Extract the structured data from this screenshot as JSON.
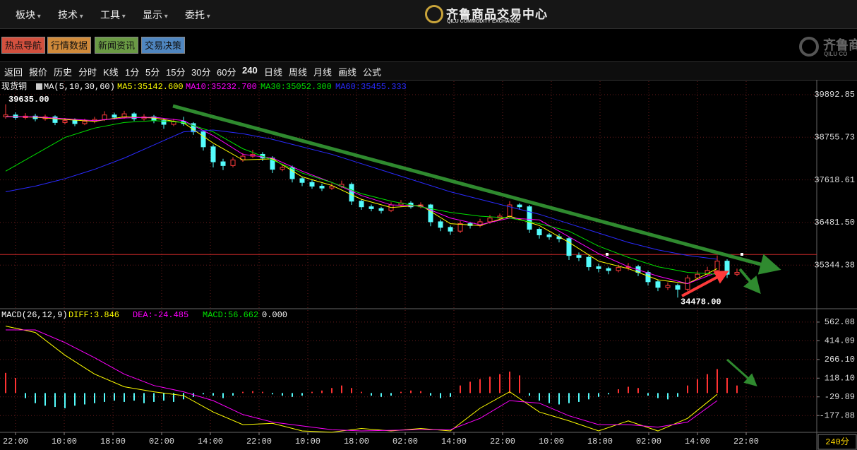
{
  "menu": [
    "板块",
    "技术",
    "工具",
    "显示",
    "委托"
  ],
  "logo": {
    "name": "齐鲁商品交易中心",
    "subtitle": "QILU COMMODITY EXCHANGE"
  },
  "corner_logo": {
    "name": "齐鲁商",
    "subtitle": "QILU CO"
  },
  "nav_buttons": [
    {
      "label": "热点导航",
      "color": "#d2503e"
    },
    {
      "label": "行情数据",
      "color": "#d08a3a"
    },
    {
      "label": "新闻资讯",
      "color": "#6a9a44"
    },
    {
      "label": "交易决策",
      "color": "#4f86c0"
    }
  ],
  "toolbar": [
    "返回",
    "报价",
    "历史",
    "分时",
    "K线",
    "1分",
    "5分",
    "15分",
    "30分",
    "60分",
    "240",
    "日线",
    "周线",
    "月线",
    "画线",
    "公式"
  ],
  "period_label": "240分",
  "chart_data": [
    {
      "type": "candlestick",
      "title": "现货铜",
      "indicator": "MA(5,10,30,60)",
      "up_color": "#ff3c3c",
      "down_color": "#54fcfc",
      "grid": true,
      "open": [
        39300,
        39350,
        39280,
        39320,
        39250,
        39300,
        39150,
        39200,
        39120,
        39180,
        39230,
        39350,
        39290,
        39380,
        39250,
        39300,
        39200,
        39100,
        39180,
        39120,
        38900,
        38500,
        38100,
        38000,
        38150,
        38250,
        38300,
        38200,
        37900,
        37950,
        37650,
        37550,
        37450,
        37400,
        37450,
        37500,
        37050,
        36900,
        36850,
        36800,
        36950,
        37000,
        36900,
        36950,
        36500,
        36350,
        36250,
        36450,
        36400,
        36500,
        36600,
        36650,
        36950,
        36900,
        36300,
        36150,
        36100,
        36050,
        35600,
        35550,
        35300,
        35250,
        35200,
        35280,
        35300,
        35150,
        34900,
        34750,
        34800,
        34700,
        35000,
        35100,
        35200,
        35450,
        35100
      ],
      "close": [
        39350,
        39280,
        39320,
        39250,
        39300,
        39150,
        39200,
        39120,
        39180,
        39230,
        39350,
        39290,
        39380,
        39250,
        39300,
        39200,
        39100,
        39180,
        39120,
        38900,
        38500,
        38100,
        38000,
        38150,
        38250,
        38300,
        38200,
        37900,
        37950,
        37650,
        37550,
        37450,
        37400,
        37450,
        37500,
        37050,
        36900,
        36850,
        36800,
        36950,
        37000,
        36900,
        36950,
        36500,
        36350,
        36250,
        36450,
        36400,
        36500,
        36600,
        36650,
        36950,
        36900,
        36300,
        36150,
        36100,
        36050,
        35600,
        35550,
        35300,
        35250,
        35200,
        35280,
        35300,
        35150,
        34900,
        34750,
        34800,
        34700,
        35000,
        35100,
        35200,
        35450,
        35100,
        35150
      ],
      "high": [
        39635,
        39420,
        39400,
        39380,
        39360,
        39340,
        39270,
        39260,
        39250,
        39300,
        39450,
        39410,
        39460,
        39420,
        39370,
        39350,
        39260,
        39250,
        39300,
        39160,
        38950,
        38560,
        38180,
        38220,
        38330,
        38420,
        38360,
        38250,
        38050,
        38000,
        37700,
        37620,
        37520,
        37530,
        37600,
        37550,
        37100,
        36960,
        36900,
        37020,
        37080,
        37050,
        37020,
        36980,
        36560,
        36400,
        36520,
        36500,
        36580,
        36680,
        36720,
        37050,
        37000,
        36950,
        36350,
        36200,
        36180,
        36100,
        35680,
        35600,
        35380,
        35300,
        35350,
        35400,
        35350,
        35200,
        34950,
        34880,
        34850,
        35080,
        35200,
        35300,
        35600,
        35500,
        35250
      ],
      "low": [
        39250,
        39220,
        39230,
        39180,
        39200,
        39080,
        39100,
        39050,
        39080,
        39130,
        39190,
        39230,
        39250,
        39190,
        39200,
        39130,
        38980,
        39050,
        39060,
        38820,
        38400,
        37950,
        37880,
        37950,
        38100,
        38200,
        38120,
        37800,
        37850,
        37550,
        37450,
        37380,
        37320,
        37350,
        37400,
        36950,
        36820,
        36780,
        36720,
        36760,
        36900,
        36850,
        36860,
        36380,
        36250,
        36150,
        36200,
        36320,
        36350,
        36450,
        36550,
        36600,
        36820,
        36200,
        36050,
        36020,
        35950,
        35480,
        35450,
        35200,
        35150,
        35100,
        35150,
        35200,
        35050,
        34800,
        34650,
        34680,
        34478,
        34650,
        34950,
        35050,
        35150,
        35000,
        35050
      ],
      "series": [
        {
          "name": "MA5:35142.600",
          "color": "#ffff00",
          "values": [
            39310,
            39290,
            39230,
            39180,
            39300,
            39270,
            39140,
            38600,
            38150,
            38180,
            37700,
            37470,
            37100,
            36880,
            36940,
            36450,
            36400,
            36650,
            36400,
            35950,
            35450,
            35250,
            34950,
            34850,
            35250
          ]
        },
        {
          "name": "MA10:35232.700",
          "color": "#ff00ff",
          "values": [
            39300,
            39300,
            39250,
            39200,
            39270,
            39290,
            39200,
            38800,
            38300,
            38200,
            37850,
            37550,
            37200,
            36950,
            36920,
            36600,
            36420,
            36600,
            36550,
            36100,
            35650,
            35300,
            35050,
            34850,
            35150
          ]
        },
        {
          "name": "MA30:35052.300",
          "color": "#00e000",
          "values": [
            37850,
            38300,
            38750,
            39000,
            39150,
            39200,
            39150,
            38900,
            38450,
            38150,
            37800,
            37550,
            37250,
            37050,
            36900,
            36750,
            36650,
            36600,
            36450,
            36250,
            35850,
            35550,
            35300,
            35150,
            35100
          ]
        },
        {
          "name": "MA60:35455.333",
          "color": "#2a2aff",
          "values": [
            37300,
            37450,
            37650,
            37900,
            38200,
            38550,
            38900,
            38950,
            38850,
            38700,
            38500,
            38300,
            38050,
            37800,
            37550,
            37300,
            37100,
            36900,
            36700,
            36450,
            36200,
            35950,
            35750,
            35600,
            35500
          ]
        }
      ],
      "ylim": [
        34180,
        40250
      ],
      "yticks": [
        39892.85,
        38755.73,
        37618.61,
        {
          "value": 36481.5,
          "label": "36481.50"
        },
        35344.38
      ],
      "annotations": [
        {
          "value": 39635,
          "label": "39635.00"
        },
        {
          "value": 34478,
          "label": "34478.00"
        }
      ],
      "price_line": 35626,
      "x_labels": [
        "22:00",
        "10:00",
        "18:00",
        "02:00",
        "14:00",
        "22:00",
        "10:00",
        "18:00",
        "02:00",
        "14:00",
        "22:00",
        "10:00",
        "18:00",
        "02:00",
        "14:00",
        "22:00"
      ]
    },
    {
      "type": "macd",
      "title": "MACD(26,12,9)",
      "macd_label": "MACD:56.662",
      "extra_label": "0.000",
      "pos_color": "#ff3232",
      "neg_color": "#54fcfc",
      "grid": true,
      "histogram": [
        160,
        120,
        -40,
        -80,
        -100,
        -110,
        -120,
        -100,
        -90,
        -80,
        -70,
        -60,
        -70,
        -60,
        -80,
        -70,
        -60,
        -70,
        -50,
        -30,
        -10,
        -20,
        -40,
        -20,
        10,
        15,
        10,
        -10,
        -20,
        -30,
        -20,
        10,
        20,
        40,
        60,
        40,
        10,
        -20,
        -30,
        -20,
        10,
        20,
        15,
        -20,
        -40,
        -30,
        60,
        90,
        110,
        130,
        150,
        170,
        140,
        -20,
        -60,
        -80,
        -90,
        -80,
        -70,
        -50,
        -30,
        -10,
        30,
        50,
        40,
        -20,
        -40,
        -50,
        -30,
        60,
        110,
        150,
        190,
        120,
        60
      ],
      "series": [
        {
          "name": "DIFF:3.846",
          "color": "#ffff00",
          "values": [
            530,
            480,
            300,
            150,
            50,
            10,
            -20,
            -150,
            -250,
            -240,
            -300,
            -310,
            -280,
            -300,
            -280,
            -300,
            -120,
            10,
            -150,
            -220,
            -300,
            -220,
            -300,
            -200,
            -10
          ]
        },
        {
          "name": "DEA:-24.485",
          "color": "#ff00ff",
          "values": [
            500,
            500,
            400,
            280,
            150,
            60,
            10,
            -60,
            -170,
            -230,
            -260,
            -290,
            -300,
            -295,
            -290,
            -290,
            -200,
            -60,
            -80,
            -180,
            -250,
            -250,
            -270,
            -230,
            -60
          ]
        }
      ],
      "ylim": [
        -311,
        668
      ],
      "yticks": [
        562.08,
        414.09,
        {
          "value": 266.1,
          "label": "266.10"
        },
        {
          "value": 118.1,
          "label": "118.10"
        },
        -29.89,
        -177.88
      ]
    }
  ]
}
